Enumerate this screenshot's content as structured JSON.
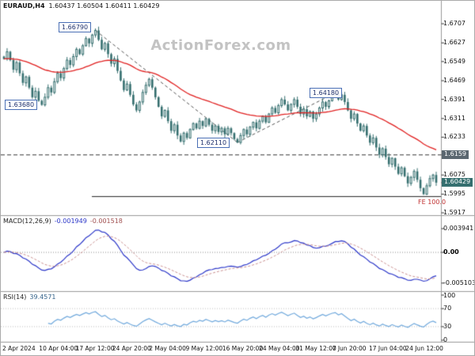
{
  "header": {
    "symbol_period": "EURAUD,H4",
    "ohlc_text": "1.60437 1.60504 1.60411 1.60429"
  },
  "watermark": "ActionForex.com",
  "colors": {
    "candle": "#356f6f",
    "ma_line": "#e02020",
    "macd_line": "#2a35c8",
    "macd_signal": "#c98f8f",
    "rsi_line": "#6fa8dc",
    "level_tag_bg": "#5b6770",
    "current_tag_bg": "#356f6f",
    "callout_border": "#4a6fb5",
    "fe_text": "#c03030",
    "trendline": "#555555",
    "separator": "#999999"
  },
  "main_chart": {
    "y_axis": [
      {
        "label": "1.6707"
      },
      {
        "label": "1.6627"
      },
      {
        "label": "1.6549"
      },
      {
        "label": "1.6469"
      },
      {
        "label": "1.6391"
      },
      {
        "label": "1.6311"
      },
      {
        "label": "1.6233"
      },
      {
        "label": "1.6159",
        "highlight": true
      },
      {
        "label": "1.6075"
      },
      {
        "label": "1.5995"
      },
      {
        "label": "1.5917"
      }
    ],
    "level_tag": {
      "label": "1.6159",
      "price": 1.6159
    },
    "current_tag": {
      "label": "1.60429",
      "price": 1.60429
    },
    "fe": {
      "label": "FE 100.0",
      "price": 1.5985
    },
    "callouts": [
      {
        "label": "1.66790",
        "price": 1.6679,
        "index": 29
      },
      {
        "label": "1.63680",
        "price": 1.6368,
        "index": 12
      },
      {
        "label": "1.62110",
        "price": 1.6211,
        "index": 74
      },
      {
        "label": "1.64180",
        "price": 1.6418,
        "index": 105
      }
    ],
    "trendlines": [
      {
        "from_index": 29,
        "from_price": 1.6679,
        "to_index": 74,
        "to_price": 1.6211
      },
      {
        "from_index": 74,
        "from_price": 1.6211,
        "to_index": 105,
        "to_price": 1.6418
      }
    ]
  },
  "macd_panel": {
    "title": "MACD(12,26,9)",
    "value_main": "-0.001949",
    "value_signal": "-0.001518",
    "axis": [
      {
        "label": "0.003941",
        "value": 0.003941
      },
      {
        "label": "0.00",
        "value": 0,
        "bold": true
      },
      {
        "label": "-0.005103",
        "value": -0.005103
      }
    ]
  },
  "rsi_panel": {
    "title": "RSI(14)",
    "value": "39.4571",
    "axis": [
      {
        "label": "100",
        "value": 100
      },
      {
        "label": "70",
        "value": 70
      },
      {
        "label": "30",
        "value": 30
      },
      {
        "label": "0",
        "value": 0
      }
    ],
    "levels": [
      70,
      30
    ]
  },
  "chart_data": [
    {
      "type": "candlestick",
      "name": "EURAUD H4 price",
      "ylim": [
        1.5917,
        1.6707
      ],
      "y_ticks": [
        "1.6707",
        "1.6627",
        "1.6549",
        "1.6469",
        "1.6391",
        "1.6311",
        "1.6233",
        "1.6159",
        "1.6075",
        "1.5995",
        "1.5917"
      ],
      "x_labels": [
        "2 Apr 2024",
        "10 Apr 04:00",
        "17 Apr 12:00",
        "24 Apr 20:00",
        "2 May 04:00",
        "9 May 12:00",
        "16 May 20:00",
        "24 May 04:00",
        "31 May 12:00",
        "7 Jun 20:00",
        "17 Jun 04:00",
        "24 Jun 12:00"
      ],
      "close": [
        1.656,
        1.659,
        1.6555,
        1.6515,
        1.6545,
        1.65,
        1.646,
        1.6485,
        1.644,
        1.64,
        1.6425,
        1.6385,
        1.6368,
        1.64,
        1.644,
        1.642,
        1.6465,
        1.65,
        1.648,
        1.652,
        1.6555,
        1.6535,
        1.657,
        1.66,
        1.658,
        1.6615,
        1.6645,
        1.6625,
        1.666,
        1.6679,
        1.664,
        1.66,
        1.6625,
        1.658,
        1.654,
        1.656,
        1.651,
        1.647,
        1.643,
        1.6455,
        1.641,
        1.637,
        1.6345,
        1.638,
        1.642,
        1.645,
        1.6475,
        1.644,
        1.64,
        1.636,
        1.632,
        1.6345,
        1.63,
        1.626,
        1.6285,
        1.624,
        1.6215,
        1.625,
        1.623,
        1.6265,
        1.629,
        1.627,
        1.63,
        1.628,
        1.631,
        1.6285,
        1.626,
        1.628,
        1.6255,
        1.627,
        1.6245,
        1.627,
        1.625,
        1.6225,
        1.6211,
        1.624,
        1.6265,
        1.6245,
        1.6275,
        1.6295,
        1.627,
        1.63,
        1.632,
        1.6295,
        1.633,
        1.6355,
        1.6335,
        1.6365,
        1.639,
        1.637,
        1.6345,
        1.637,
        1.639,
        1.636,
        1.633,
        1.635,
        1.632,
        1.634,
        1.631,
        1.633,
        1.6355,
        1.638,
        1.636,
        1.6385,
        1.6405,
        1.6418,
        1.639,
        1.641,
        1.638,
        1.6345,
        1.631,
        1.633,
        1.629,
        1.626,
        1.628,
        1.624,
        1.621,
        1.623,
        1.619,
        1.616,
        1.6185,
        1.615,
        1.612,
        1.6145,
        1.611,
        1.608,
        1.6105,
        1.607,
        1.604,
        1.6065,
        1.609,
        1.6055,
        1.602,
        1.5995,
        1.603,
        1.606,
        1.6075,
        1.6043
      ],
      "overlays": [
        {
          "name": "moving-average-red",
          "type": "line",
          "period": 45
        }
      ],
      "annotations": [
        "1.66790",
        "1.63680",
        "1.62110",
        "1.64180",
        "1.6159",
        "FE 100.0"
      ]
    },
    {
      "type": "line",
      "name": "MACD(12,26,9)",
      "ylim": [
        -0.005103,
        0.003941
      ],
      "current_main": -0.001949,
      "current_signal": -0.001518,
      "derived_from": "close"
    },
    {
      "type": "line",
      "name": "RSI(14)",
      "ylim": [
        0,
        100
      ],
      "current": 39.4571,
      "levels": [
        70,
        30
      ],
      "derived_from": "close"
    }
  ],
  "x_axis": {
    "labels": [
      "2 Apr 2024",
      "10 Apr 04:00",
      "17 Apr 12:00",
      "24 Apr 20:00",
      "2 May 04:00",
      "9 May 12:00",
      "16 May 20:00",
      "24 May 04:00",
      "31 May 12:00",
      "7 Jun 20:00",
      "17 Jun 04:00",
      "24 Jun 12:00"
    ]
  }
}
